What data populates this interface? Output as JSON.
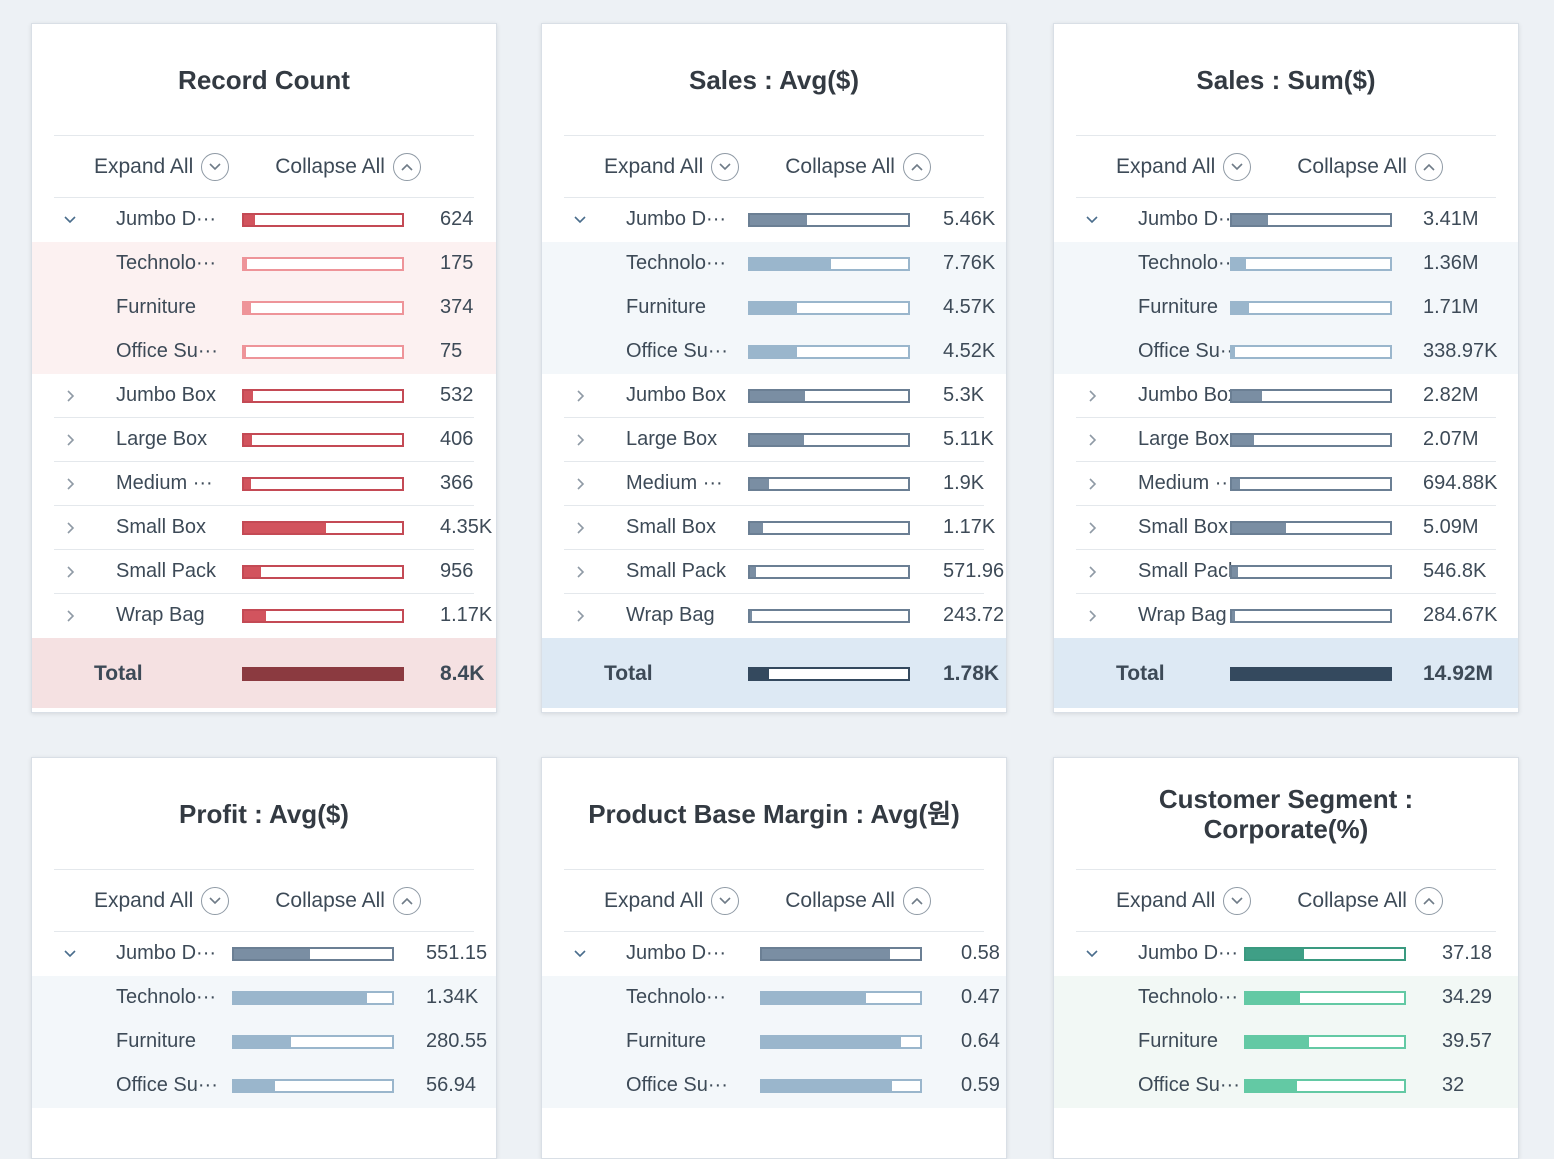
{
  "controls": {
    "expand_label": "Expand All",
    "collapse_label": "Collapse All"
  },
  "cards": [
    {
      "title": "Record Count",
      "theme": {
        "parent_fill": "#d2545e",
        "parent_border": "#c44a55",
        "child_fill": "#ee9499",
        "child_border": "#ee9499",
        "total_fill": "#8b3a40",
        "total_border": "#8b3a40",
        "child_bg": "#fcf1f1",
        "total_bg": "#f5e1e2"
      },
      "rows": [
        {
          "type": "parent",
          "expanded": true,
          "label": "Jumbo D···",
          "value": "624",
          "frac": 0.07
        },
        {
          "type": "child",
          "label": "Technolo···",
          "value": "175",
          "frac": 0.02
        },
        {
          "type": "child",
          "label": "Furniture",
          "value": "374",
          "frac": 0.045
        },
        {
          "type": "child",
          "label": "Office Su···",
          "value": "75",
          "frac": 0.01
        },
        {
          "type": "parent",
          "expanded": false,
          "label": "Jumbo Box",
          "value": "532",
          "frac": 0.06
        },
        {
          "type": "parent",
          "expanded": false,
          "label": "Large Box",
          "value": "406",
          "frac": 0.05
        },
        {
          "type": "parent",
          "expanded": false,
          "label": "Medium ···",
          "value": "366",
          "frac": 0.045
        },
        {
          "type": "parent",
          "expanded": false,
          "label": "Small Box",
          "value": "4.35K",
          "frac": 0.52
        },
        {
          "type": "parent",
          "expanded": false,
          "label": "Small Pack",
          "value": "956",
          "frac": 0.11
        },
        {
          "type": "parent",
          "expanded": false,
          "label": "Wrap Bag",
          "value": "1.17K",
          "frac": 0.14
        }
      ],
      "total": {
        "label": "Total",
        "value": "8.4K",
        "frac": 1.0
      }
    },
    {
      "title": "Sales : Avg($)",
      "theme": {
        "parent_fill": "#7a8ea3",
        "parent_border": "#6b7f94",
        "child_fill": "#9ab6cc",
        "child_border": "#9ab6cc",
        "total_fill": "#34495e",
        "total_border": "#34495e",
        "child_bg": "#f3f7fa",
        "total_bg": "#dde9f4"
      },
      "rows": [
        {
          "type": "parent",
          "expanded": true,
          "label": "Jumbo D···",
          "value": "5.46K",
          "frac": 0.36
        },
        {
          "type": "child",
          "label": "Technolo···",
          "value": "7.76K",
          "frac": 0.51
        },
        {
          "type": "child",
          "label": "Furniture",
          "value": "4.57K",
          "frac": 0.3
        },
        {
          "type": "child",
          "label": "Office Su···",
          "value": "4.52K",
          "frac": 0.3
        },
        {
          "type": "parent",
          "expanded": false,
          "label": "Jumbo Box",
          "value": "5.3K",
          "frac": 0.35
        },
        {
          "type": "parent",
          "expanded": false,
          "label": "Large Box",
          "value": "5.11K",
          "frac": 0.34
        },
        {
          "type": "parent",
          "expanded": false,
          "label": "Medium ···",
          "value": "1.9K",
          "frac": 0.12
        },
        {
          "type": "parent",
          "expanded": false,
          "label": "Small Box",
          "value": "1.17K",
          "frac": 0.08
        },
        {
          "type": "parent",
          "expanded": false,
          "label": "Small Pack",
          "value": "571.96",
          "frac": 0.035
        },
        {
          "type": "parent",
          "expanded": false,
          "label": "Wrap Bag",
          "value": "243.72",
          "frac": 0.015
        }
      ],
      "total": {
        "label": "Total",
        "value": "1.78K",
        "frac": 0.12
      }
    },
    {
      "title": "Sales : Sum($)",
      "theme": {
        "parent_fill": "#7a8ea3",
        "parent_border": "#6b7f94",
        "child_fill": "#9ab6cc",
        "child_border": "#9ab6cc",
        "total_fill": "#34495e",
        "total_border": "#34495e",
        "child_bg": "#f3f7fa",
        "total_bg": "#dde9f4"
      },
      "rows": [
        {
          "type": "parent",
          "expanded": true,
          "label": "Jumbo D···",
          "value": "3.41M",
          "frac": 0.23
        },
        {
          "type": "child",
          "label": "Technolo···",
          "value": "1.36M",
          "frac": 0.09
        },
        {
          "type": "child",
          "label": "Furniture",
          "value": "1.71M",
          "frac": 0.11
        },
        {
          "type": "child",
          "label": "Office Su···",
          "value": "338.97K",
          "frac": 0.02
        },
        {
          "type": "parent",
          "expanded": false,
          "label": "Jumbo Box",
          "value": "2.82M",
          "frac": 0.19
        },
        {
          "type": "parent",
          "expanded": false,
          "label": "Large Box",
          "value": "2.07M",
          "frac": 0.14
        },
        {
          "type": "parent",
          "expanded": false,
          "label": "Medium ···",
          "value": "694.88K",
          "frac": 0.05
        },
        {
          "type": "parent",
          "expanded": false,
          "label": "Small Box",
          "value": "5.09M",
          "frac": 0.34
        },
        {
          "type": "parent",
          "expanded": false,
          "label": "Small Pack",
          "value": "546.8K",
          "frac": 0.04
        },
        {
          "type": "parent",
          "expanded": false,
          "label": "Wrap Bag",
          "value": "284.67K",
          "frac": 0.02
        }
      ],
      "total": {
        "label": "Total",
        "value": "14.92M",
        "frac": 1.0
      }
    },
    {
      "title": "Profit : Avg($)",
      "theme": {
        "parent_fill": "#7a8ea3",
        "parent_border": "#6b7f94",
        "child_fill": "#9ab6cc",
        "child_border": "#9ab6cc",
        "total_fill": "#34495e",
        "total_border": "#34495e",
        "child_bg": "#f3f7fa",
        "total_bg": "#dde9f4"
      },
      "rows": [
        {
          "type": "parent",
          "expanded": true,
          "label": "Jumbo D···",
          "value": "551.15",
          "frac": 0.48
        },
        {
          "type": "child",
          "label": "Technolo···",
          "value": "1.34K",
          "frac": 0.84
        },
        {
          "type": "child",
          "label": "Furniture",
          "value": "280.55",
          "frac": 0.36
        },
        {
          "type": "child",
          "label": "Office Su···",
          "value": "56.94",
          "frac": 0.26
        }
      ]
    },
    {
      "title": "Product Base Margin : Avg(원)",
      "theme": {
        "parent_fill": "#7a8ea3",
        "parent_border": "#6b7f94",
        "child_fill": "#9ab6cc",
        "child_border": "#9ab6cc",
        "total_fill": "#34495e",
        "total_border": "#34495e",
        "child_bg": "#f3f7fa",
        "total_bg": "#dde9f4"
      },
      "rows": [
        {
          "type": "parent",
          "expanded": true,
          "label": "Jumbo D···",
          "value": "0.58",
          "frac": 0.81
        },
        {
          "type": "child",
          "label": "Technolo···",
          "value": "0.47",
          "frac": 0.66
        },
        {
          "type": "child",
          "label": "Furniture",
          "value": "0.64",
          "frac": 0.88
        },
        {
          "type": "child",
          "label": "Office Su···",
          "value": "0.59",
          "frac": 0.82
        }
      ]
    },
    {
      "title": "Customer Segment : Corporate(%)",
      "theme": {
        "parent_fill": "#3f9f86",
        "parent_border": "#3a9a80",
        "child_fill": "#63c9a4",
        "child_border": "#63c9a4",
        "total_fill": "#2e7d68",
        "total_border": "#2e7d68",
        "child_bg": "#f2f8f5",
        "total_bg": "#dff1e9"
      },
      "rows": [
        {
          "type": "parent",
          "expanded": true,
          "label": "Jumbo D···",
          "value": "37.18",
          "frac": 0.37
        },
        {
          "type": "child",
          "label": "Technolo···",
          "value": "34.29",
          "frac": 0.34
        },
        {
          "type": "child",
          "label": "Furniture",
          "value": "39.57",
          "frac": 0.4
        },
        {
          "type": "child",
          "label": "Office Su···",
          "value": "32",
          "frac": 0.32
        }
      ]
    }
  ]
}
